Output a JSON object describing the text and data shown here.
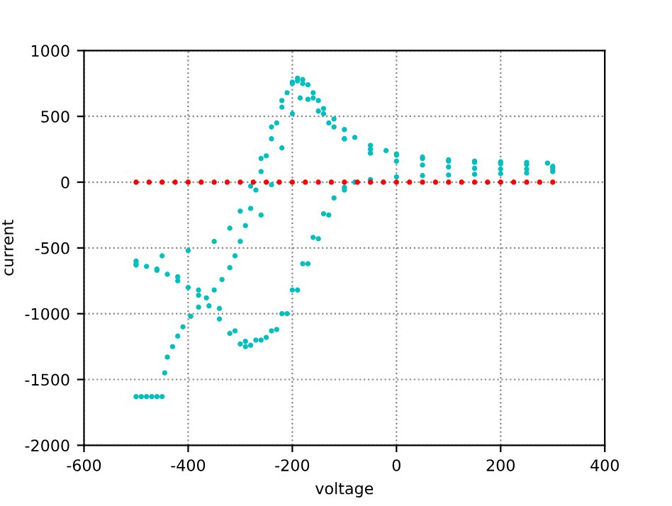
{
  "chart_data": {
    "type": "scatter",
    "xlabel": "voltage",
    "ylabel": "current",
    "xlim": [
      -600,
      400
    ],
    "ylim": [
      -2000,
      1000
    ],
    "xticks": [
      -600,
      -400,
      -200,
      0,
      200,
      400
    ],
    "yticks": [
      -2000,
      -1500,
      -1000,
      -500,
      0,
      500,
      1000
    ],
    "grid": true,
    "marker": "circle",
    "series": [
      {
        "color": "#00bfbf",
        "x": [
          -500,
          -490,
          -480,
          -470,
          -460,
          -450,
          -445,
          -440,
          -430,
          -420,
          -410,
          -395,
          -380,
          -365,
          -350,
          -335,
          -320,
          -310,
          -300,
          -290,
          -280,
          -270,
          -260,
          -250,
          -240,
          -230,
          -220,
          -210,
          -200,
          -190,
          -180,
          -170,
          -160,
          -150,
          -140,
          -120,
          -100,
          -80,
          -50,
          -20,
          0,
          50,
          100,
          150,
          200,
          250,
          290,
          300,
          -500,
          -450,
          -400,
          -350,
          -320,
          -300,
          -280,
          -260,
          -240,
          -220,
          -200,
          -190,
          -180,
          -160,
          -140,
          -120,
          -100,
          -50,
          0,
          50,
          100,
          150,
          200,
          250,
          300,
          -260,
          -240,
          -220,
          -200,
          -185,
          -170,
          -150,
          -130,
          -100,
          -50,
          0,
          50,
          100,
          150,
          200,
          250,
          300,
          300,
          250,
          200,
          150,
          100,
          50,
          0,
          -50,
          -80,
          -100,
          -120,
          -140,
          -160,
          -180,
          -200,
          -220,
          -240,
          -260,
          -280,
          -290,
          -300,
          -320,
          -340,
          -360,
          -380,
          -400,
          -420,
          -440,
          -460,
          -480,
          -500,
          -100,
          -130,
          -150,
          -170,
          -190,
          -210,
          -230,
          -250,
          -270,
          -290,
          -310,
          -340,
          -380,
          -420,
          -460,
          -500
        ],
        "values": [
          -1630,
          -1630,
          -1630,
          -1630,
          -1630,
          -1630,
          -1450,
          -1330,
          -1250,
          -1170,
          -1100,
          -1020,
          -950,
          -880,
          -820,
          -740,
          -650,
          -560,
          -450,
          -330,
          -200,
          -60,
          80,
          200,
          330,
          450,
          570,
          680,
          760,
          790,
          780,
          740,
          680,
          620,
          560,
          480,
          400,
          340,
          280,
          240,
          215,
          190,
          170,
          160,
          155,
          150,
          145,
          120,
          -600,
          -560,
          -520,
          -450,
          -350,
          -220,
          -30,
          180,
          420,
          620,
          750,
          770,
          750,
          640,
          520,
          420,
          330,
          250,
          205,
          180,
          160,
          150,
          140,
          135,
          110,
          -250,
          -20,
          260,
          520,
          640,
          630,
          540,
          450,
          330,
          220,
          160,
          130,
          115,
          105,
          100,
          100,
          90,
          80,
          70,
          65,
          60,
          55,
          50,
          40,
          20,
          0,
          -40,
          -120,
          -240,
          -420,
          -620,
          -820,
          -1000,
          -1130,
          -1200,
          -1240,
          -1250,
          -1230,
          -1150,
          -1040,
          -940,
          -860,
          -800,
          -750,
          -700,
          -670,
          -640,
          -620,
          -60,
          -250,
          -430,
          -620,
          -820,
          -1000,
          -1120,
          -1180,
          -1200,
          -1210,
          -1130,
          -960,
          -820,
          -720,
          -660,
          -630
        ]
      },
      {
        "color": "#ff0000",
        "x": [
          -500,
          -475,
          -450,
          -425,
          -400,
          -375,
          -350,
          -325,
          -300,
          -275,
          -250,
          -225,
          -200,
          -175,
          -150,
          -125,
          -100,
          -75,
          -50,
          -25,
          0,
          25,
          50,
          75,
          100,
          125,
          150,
          175,
          200,
          225,
          250,
          275,
          300
        ],
        "values": [
          0,
          0,
          0,
          0,
          0,
          0,
          0,
          0,
          0,
          0,
          0,
          0,
          0,
          0,
          0,
          0,
          0,
          0,
          0,
          0,
          0,
          0,
          0,
          0,
          0,
          0,
          0,
          0,
          0,
          0,
          0,
          0,
          0
        ]
      }
    ]
  }
}
